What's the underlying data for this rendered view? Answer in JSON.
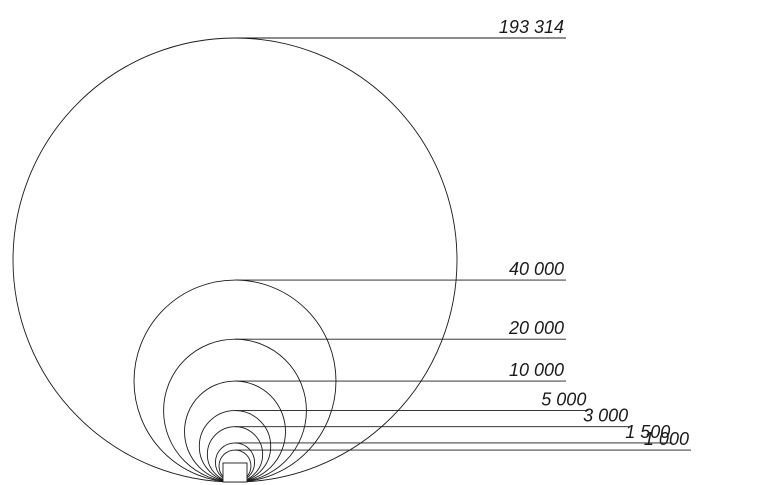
{
  "chart_data": {
    "type": "nested-bubble",
    "values": [
      193314,
      40000,
      20000,
      10000,
      5000,
      3000,
      1500,
      1000
    ],
    "labels": [
      "193 314",
      "40 000",
      "20 000",
      "10 000",
      "5 000",
      "3 000",
      "1 500",
      "1 000"
    ],
    "line_color": "#1a1a1a",
    "background": "#ffffff"
  }
}
